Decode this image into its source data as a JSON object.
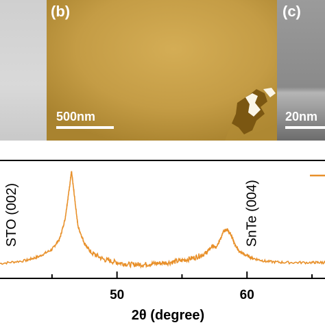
{
  "figure": {
    "panel_b": {
      "label": "(b)",
      "scalebar": "500nm",
      "colors": {
        "base": "#c9a24a",
        "dark": "#8e6a1a",
        "defect": "#ffffff"
      }
    },
    "panel_c": {
      "label": "(c)",
      "scalebar": "20nm"
    },
    "panel_a": {
      "colors": {
        "base": "#d3d3d3"
      }
    }
  },
  "chart_data": {
    "type": "line",
    "xlabel": "2θ (degree)",
    "xlim": [
      41,
      66
    ],
    "x_ticks": [
      50,
      60
    ],
    "series_color": "#e8902a",
    "annotations": [
      {
        "text": "STO (002)",
        "x": 42.2
      },
      {
        "text": "SnTe (004)",
        "x": 60.7
      }
    ],
    "series": [
      {
        "x": [
          41,
          43,
          44,
          45,
          45.6,
          46.0,
          46.3,
          46.5,
          46.7,
          47.0,
          47.5,
          48.0,
          49.0,
          50.0,
          51.0,
          52.0,
          53.0,
          54.0,
          55.0,
          56.0,
          56.8,
          57.3,
          57.6,
          57.9,
          58.2,
          58.5,
          58.8,
          59.1,
          59.4,
          59.8,
          60.5,
          61.5,
          63.0,
          65.0,
          66.0
        ],
        "y": [
          0.08,
          0.11,
          0.15,
          0.22,
          0.33,
          0.52,
          0.8,
          1.0,
          0.78,
          0.45,
          0.28,
          0.19,
          0.12,
          0.09,
          0.07,
          0.07,
          0.08,
          0.09,
          0.11,
          0.14,
          0.18,
          0.25,
          0.24,
          0.31,
          0.4,
          0.42,
          0.36,
          0.26,
          0.2,
          0.17,
          0.13,
          0.1,
          0.09,
          0.09,
          0.09
        ]
      }
    ]
  }
}
